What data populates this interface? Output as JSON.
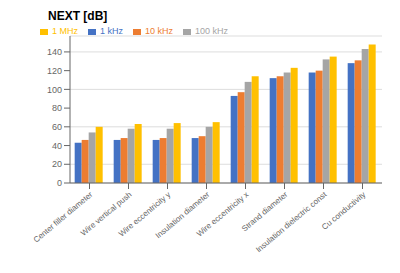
{
  "chart_data": {
    "type": "bar",
    "title": "NEXT [dB]",
    "categories": [
      "Center filler diameter",
      "Wire vertical push",
      "Wire eccentricity y",
      "Insulation diameter",
      "Wire eccentricity x",
      "Strand diameter",
      "Insulation dielectric const",
      "Cu conductivity"
    ],
    "series": [
      {
        "name": "1 kHz",
        "color": "#4472C4",
        "values": [
          43,
          46,
          46,
          48,
          93,
          112,
          118,
          128
        ]
      },
      {
        "name": "10 kHz",
        "color": "#ED7D31",
        "values": [
          46,
          48,
          48,
          50,
          97,
          114,
          120,
          131
        ]
      },
      {
        "name": "100 kHz",
        "color": "#A5A5A5",
        "values": [
          54,
          58,
          58,
          60,
          108,
          118,
          132,
          143
        ]
      },
      {
        "name": "1 MHz",
        "color": "#FFC000",
        "values": [
          60,
          63,
          64,
          65,
          114,
          123,
          135,
          148
        ]
      }
    ],
    "ylim": [
      0,
      157
    ],
    "yticks": [
      0,
      20,
      40,
      60,
      80,
      100,
      120,
      140
    ],
    "grid": true,
    "legend": "upper left"
  }
}
